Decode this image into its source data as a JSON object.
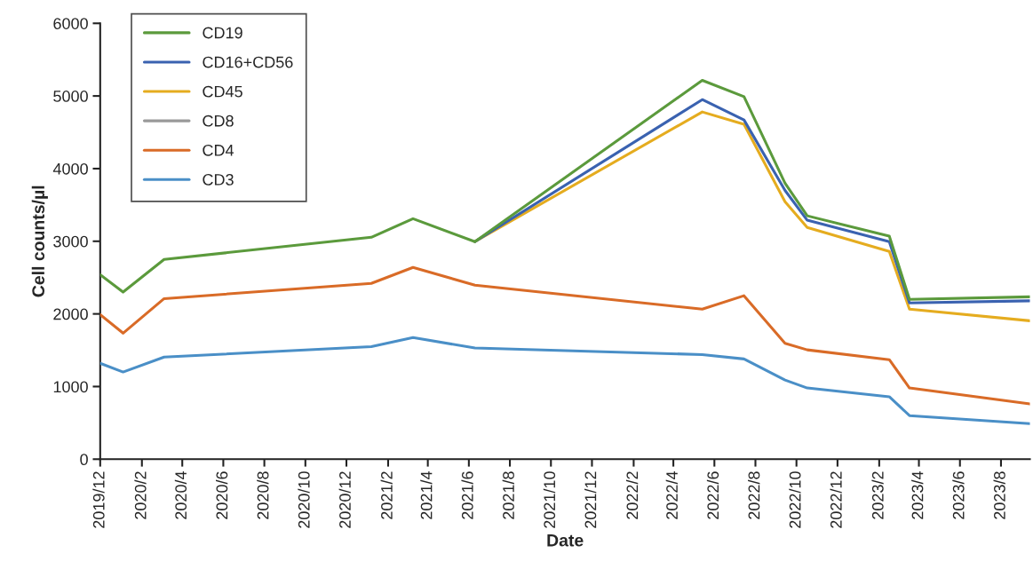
{
  "chart_data": {
    "type": "line",
    "xlabel": "Date",
    "ylabel": "Cell counts/µl",
    "x": [
      "2019-12-01",
      "2020-01-04",
      "2020-03-05",
      "2021-01-07",
      "2021-03-10",
      "2021-06-10",
      "2022-05-14",
      "2022-07-15",
      "2022-09-14",
      "2022-10-17",
      "2023-02-16",
      "2023-03-18",
      "2023-09-13"
    ],
    "series": [
      {
        "name": "CD19",
        "color": "#5b9a3c",
        "values": [
          2540,
          2300,
          2750,
          3055,
          3310,
          2995,
          5215,
          4990,
          3800,
          3350,
          3070,
          2200,
          2235
        ]
      },
      {
        "name": "CD16+CD56",
        "color": "#3a62b0",
        "values": [
          null,
          null,
          null,
          null,
          null,
          2995,
          4950,
          4670,
          3700,
          3290,
          2995,
          2150,
          2180
        ]
      },
      {
        "name": "CD45",
        "color": "#e5ac1f",
        "values": [
          null,
          null,
          null,
          null,
          null,
          2995,
          4780,
          4610,
          3545,
          3190,
          2860,
          2065,
          1905
        ]
      },
      {
        "name": "CD8",
        "color": "#999999",
        "values": [
          null,
          null,
          null,
          null,
          null,
          null,
          null,
          null,
          null,
          null,
          null,
          null,
          null
        ]
      },
      {
        "name": "CD4",
        "color": "#d96b27",
        "values": [
          1990,
          1735,
          2210,
          2420,
          2640,
          2395,
          2065,
          2250,
          1595,
          1505,
          1370,
          980,
          760
        ]
      },
      {
        "name": "CD3",
        "color": "#4a8fc7",
        "values": [
          1320,
          1200,
          1405,
          1550,
          1675,
          1530,
          1440,
          1380,
          1090,
          980,
          860,
          600,
          490
        ]
      }
    ],
    "xlim": [
      "2019-12-01",
      "2023-09-13"
    ],
    "xticks": [
      {
        "value": "2019-12",
        "label": "2019/12"
      },
      {
        "value": "2020-02",
        "label": "2020/2"
      },
      {
        "value": "2020-04",
        "label": "2020/4"
      },
      {
        "value": "2020-06",
        "label": "2020/6"
      },
      {
        "value": "2020-08",
        "label": "2020/8"
      },
      {
        "value": "2020-10",
        "label": "2020/10"
      },
      {
        "value": "2020-12",
        "label": "2020/12"
      },
      {
        "value": "2021-02",
        "label": "2021/2"
      },
      {
        "value": "2021-04",
        "label": "2021/4"
      },
      {
        "value": "2021-06",
        "label": "2021/6"
      },
      {
        "value": "2021-08",
        "label": "2021/8"
      },
      {
        "value": "2021-10",
        "label": "2021/10"
      },
      {
        "value": "2021-12",
        "label": "2021/12"
      },
      {
        "value": "2022-02",
        "label": "2022/2"
      },
      {
        "value": "2022-04",
        "label": "2022/4"
      },
      {
        "value": "2022-06",
        "label": "2022/6"
      },
      {
        "value": "2022-08",
        "label": "2022/8"
      },
      {
        "value": "2022-10",
        "label": "2022/10"
      },
      {
        "value": "2022-12",
        "label": "2022/12"
      },
      {
        "value": "2023-02",
        "label": "2023/2"
      },
      {
        "value": "2023-04",
        "label": "2023/4"
      },
      {
        "value": "2023-06",
        "label": "2023/6"
      },
      {
        "value": "2023-08",
        "label": "2023/8"
      }
    ],
    "ylim": [
      0,
      6000
    ],
    "yticks": [
      0,
      1000,
      2000,
      3000,
      4000,
      5000,
      6000
    ],
    "grid": false,
    "legend": "top left",
    "marker": "none",
    "line_style": "solid"
  }
}
